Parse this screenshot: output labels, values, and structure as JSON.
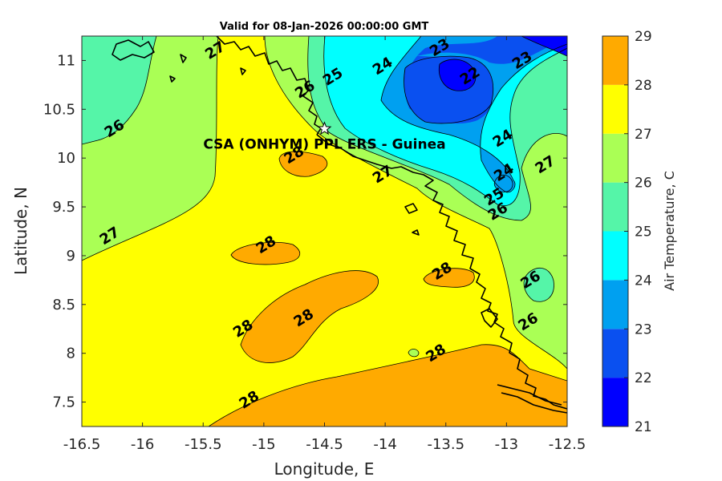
{
  "title": "Valid for 08-Jan-2026 00:00:00 GMT",
  "station_label": "CSA (ONHYM) PPL ERS  - Guinea",
  "colors": {
    "background_fill": "#ffff00",
    "levels": [
      {
        "range": [
          21,
          22
        ],
        "color": "#0000ff"
      },
      {
        "range": [
          22,
          23
        ],
        "color": "#0a50f0"
      },
      {
        "range": [
          23,
          24
        ],
        "color": "#00a0f0"
      },
      {
        "range": [
          24,
          25
        ],
        "color": "#00ffff"
      },
      {
        "range": [
          25,
          26
        ],
        "color": "#55f5a8"
      },
      {
        "range": [
          26,
          27
        ],
        "color": "#aaff55"
      },
      {
        "range": [
          27,
          28
        ],
        "color": "#ffff00"
      },
      {
        "range": [
          28,
          29
        ],
        "color": "#ffaa00"
      },
      {
        "range": [
          29,
          30
        ],
        "color": "#ff5500"
      }
    ]
  },
  "chart_data": {
    "type": "heatmap",
    "title": "Valid for 08-Jan-2026 00:00:00 GMT",
    "xlabel": "Longitude, E",
    "ylabel": "Latitude, N",
    "xlim": [
      -16.5,
      -12.5
    ],
    "ylim": [
      7.25,
      11.25
    ],
    "xticks": [
      "-16.5",
      "-16",
      "-15.5",
      "-15",
      "-14.5",
      "-14",
      "-13.5",
      "-13",
      "-12.5"
    ],
    "yticks": [
      "7.5",
      "8",
      "8.5",
      "9",
      "9.5",
      "10",
      "10.5",
      "11"
    ],
    "colorbar": {
      "label": "Air Temperature, C",
      "ticks": [
        "21",
        "22",
        "23",
        "24",
        "25",
        "26",
        "27",
        "28",
        "29"
      ],
      "range": [
        21,
        29
      ]
    },
    "station": {
      "name": "CSA (ONHYM) PPL ERS  - Guinea",
      "lon": -14.5,
      "lat": 10.3
    },
    "contour_labels": [
      {
        "text": "27",
        "lon": -15.4,
        "lat": 11.1
      },
      {
        "text": "25",
        "lon": -14.43,
        "lat": 10.83
      },
      {
        "text": "26",
        "lon": -14.66,
        "lat": 10.7
      },
      {
        "text": "24",
        "lon": -14.02,
        "lat": 10.94
      },
      {
        "text": "23",
        "lon": -13.55,
        "lat": 11.13
      },
      {
        "text": "22",
        "lon": -13.3,
        "lat": 10.84
      },
      {
        "text": "23",
        "lon": -12.87,
        "lat": 11.0
      },
      {
        "text": "26",
        "lon": -16.23,
        "lat": 10.3
      },
      {
        "text": "28",
        "lon": -14.75,
        "lat": 10.03
      },
      {
        "text": "24",
        "lon": -13.03,
        "lat": 10.2
      },
      {
        "text": "27",
        "lon": -14.02,
        "lat": 9.83
      },
      {
        "text": "24",
        "lon": -13.02,
        "lat": 9.85
      },
      {
        "text": "25",
        "lon": -13.1,
        "lat": 9.6
      },
      {
        "text": "26",
        "lon": -13.07,
        "lat": 9.45
      },
      {
        "text": "27",
        "lon": -12.68,
        "lat": 9.93
      },
      {
        "text": "27",
        "lon": -16.27,
        "lat": 9.2
      },
      {
        "text": "28",
        "lon": -14.98,
        "lat": 9.11
      },
      {
        "text": "28",
        "lon": -13.53,
        "lat": 8.84
      },
      {
        "text": "26",
        "lon": -12.8,
        "lat": 8.75
      },
      {
        "text": "28",
        "lon": -15.17,
        "lat": 8.25
      },
      {
        "text": "28",
        "lon": -14.67,
        "lat": 8.36
      },
      {
        "text": "26",
        "lon": -12.82,
        "lat": 8.32
      },
      {
        "text": "28",
        "lon": -13.58,
        "lat": 8.0
      },
      {
        "text": "28",
        "lon": -15.12,
        "lat": 7.52
      }
    ]
  }
}
